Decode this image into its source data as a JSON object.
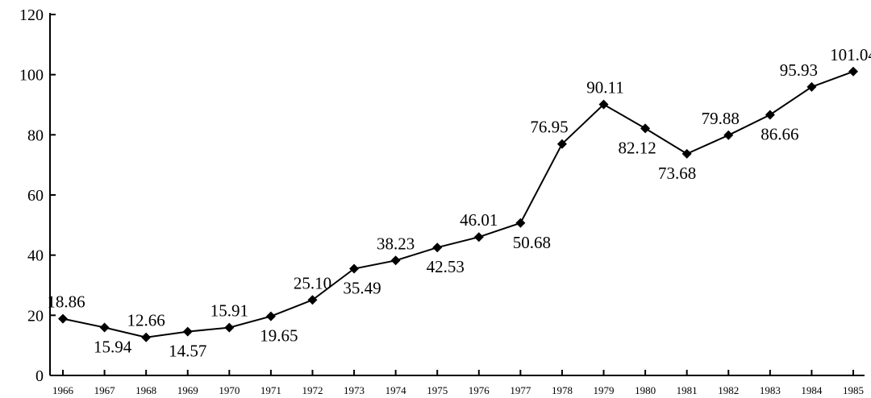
{
  "chart_data": {
    "type": "line",
    "categories": [
      "1966",
      "1967",
      "1968",
      "1969",
      "1970",
      "1971",
      "1972",
      "1973",
      "1974",
      "1975",
      "1976",
      "1977",
      "1978",
      "1979",
      "1980",
      "1981",
      "1982",
      "1983",
      "1984",
      "1985"
    ],
    "values": [
      18.86,
      15.94,
      12.66,
      14.57,
      15.91,
      19.65,
      25.1,
      35.49,
      38.23,
      42.53,
      46.01,
      50.68,
      76.95,
      90.11,
      82.12,
      73.68,
      79.88,
      86.66,
      95.93,
      101.04
    ],
    "data_labels": [
      "18.86",
      "15.94",
      "12.66",
      "14.57",
      "15.91",
      "19.65",
      "25.10",
      "35.49",
      "38.23",
      "42.53",
      "46.01",
      "50.68",
      "76.95",
      "90.11",
      "82.12",
      "73.68",
      "79.88",
      "86.66",
      "95.93",
      "101.04"
    ],
    "y_ticks": [
      "0",
      "20",
      "40",
      "60",
      "80",
      "100",
      "120"
    ],
    "ylim": [
      0,
      120
    ],
    "marker": "diamond",
    "grid": false,
    "colors": {
      "line": "#000000",
      "marker": "#000000"
    }
  }
}
